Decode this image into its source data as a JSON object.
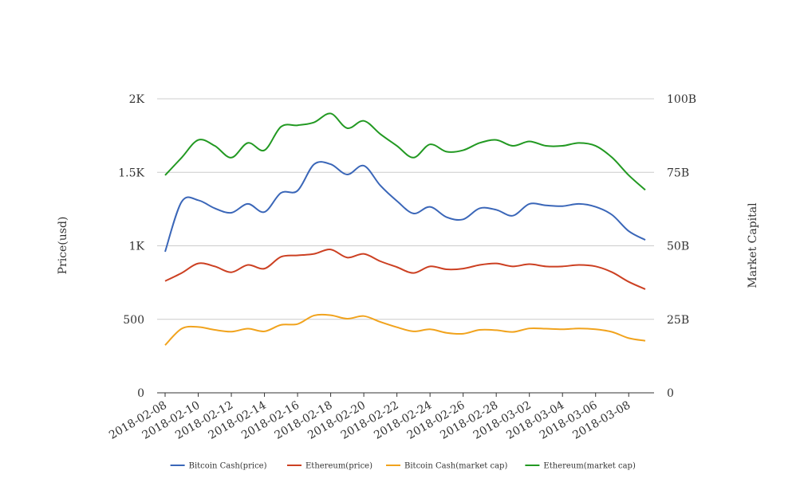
{
  "chart_data": {
    "type": "line",
    "title": "",
    "xlabel": "",
    "ylabel_left": "Price(usd)",
    "ylabel_right": "Market Capital",
    "ylim_left": [
      0,
      2000
    ],
    "ylim_right": [
      0,
      100000000000
    ],
    "yticks_left": [
      "0",
      "500",
      "1K",
      "1.5K",
      "2K"
    ],
    "yticks_right": [
      "0",
      "25B",
      "50B",
      "75B",
      "100B"
    ],
    "grid": true,
    "legend_position": "bottom",
    "x": [
      "2018-02-08",
      "2018-02-09",
      "2018-02-10",
      "2018-02-11",
      "2018-02-12",
      "2018-02-13",
      "2018-02-14",
      "2018-02-15",
      "2018-02-16",
      "2018-02-17",
      "2018-02-18",
      "2018-02-19",
      "2018-02-20",
      "2018-02-21",
      "2018-02-22",
      "2018-02-23",
      "2018-02-24",
      "2018-02-25",
      "2018-02-26",
      "2018-02-27",
      "2018-02-28",
      "2018-03-01",
      "2018-03-02",
      "2018-03-03",
      "2018-03-04",
      "2018-03-05",
      "2018-03-06",
      "2018-03-07",
      "2018-03-08",
      "2018-03-09"
    ],
    "xtick_labels": [
      "2018-02-08",
      "2018-02-10",
      "2018-02-12",
      "2018-02-14",
      "2018-02-16",
      "2018-02-18",
      "2018-02-20",
      "2018-02-22",
      "2018-02-24",
      "2018-02-26",
      "2018-02-28",
      "2018-03-02",
      "2018-03-04",
      "2018-03-06",
      "2018-03-08"
    ],
    "series": [
      {
        "name": "Bitcoin Cash(price)",
        "axis": "left",
        "color": "#3a66b8",
        "values": [
          960,
          1300,
          1310,
          1255,
          1225,
          1285,
          1230,
          1360,
          1375,
          1555,
          1555,
          1485,
          1545,
          1410,
          1305,
          1220,
          1265,
          1195,
          1180,
          1255,
          1245,
          1205,
          1285,
          1275,
          1270,
          1285,
          1265,
          1210,
          1100,
          1040
        ]
      },
      {
        "name": "Ethereum(price)",
        "axis": "left",
        "color": "#cc4022",
        "values": [
          760,
          815,
          880,
          860,
          820,
          870,
          845,
          925,
          935,
          945,
          975,
          920,
          945,
          895,
          855,
          815,
          860,
          840,
          845,
          870,
          880,
          860,
          875,
          860,
          860,
          870,
          860,
          820,
          755,
          705
        ]
      },
      {
        "name": "Bitcoin Cash(market cap)",
        "axis": "right",
        "color": "#f1a31d",
        "values": [
          16200000000,
          21800000000,
          22400000000,
          21400000000,
          20800000000,
          21800000000,
          20900000000,
          23100000000,
          23400000000,
          26300000000,
          26400000000,
          25200000000,
          26100000000,
          24100000000,
          22300000000,
          20900000000,
          21600000000,
          20400000000,
          20100000000,
          21400000000,
          21300000000,
          20700000000,
          21900000000,
          21800000000,
          21600000000,
          21900000000,
          21600000000,
          20700000000,
          18600000000,
          17700000000
        ]
      },
      {
        "name": "Ethereum(market cap)",
        "axis": "right",
        "color": "#229922",
        "values": [
          74000000000,
          80000000000,
          86000000000,
          84000000000,
          80000000000,
          85000000000,
          82500000000,
          90500000000,
          91000000000,
          92000000000,
          95000000000,
          90000000000,
          92500000000,
          88000000000,
          84000000000,
          80000000000,
          84500000000,
          82000000000,
          82500000000,
          85000000000,
          86000000000,
          84000000000,
          85500000000,
          84000000000,
          84000000000,
          85000000000,
          84000000000,
          80000000000,
          74000000000,
          69000000000
        ]
      }
    ]
  }
}
